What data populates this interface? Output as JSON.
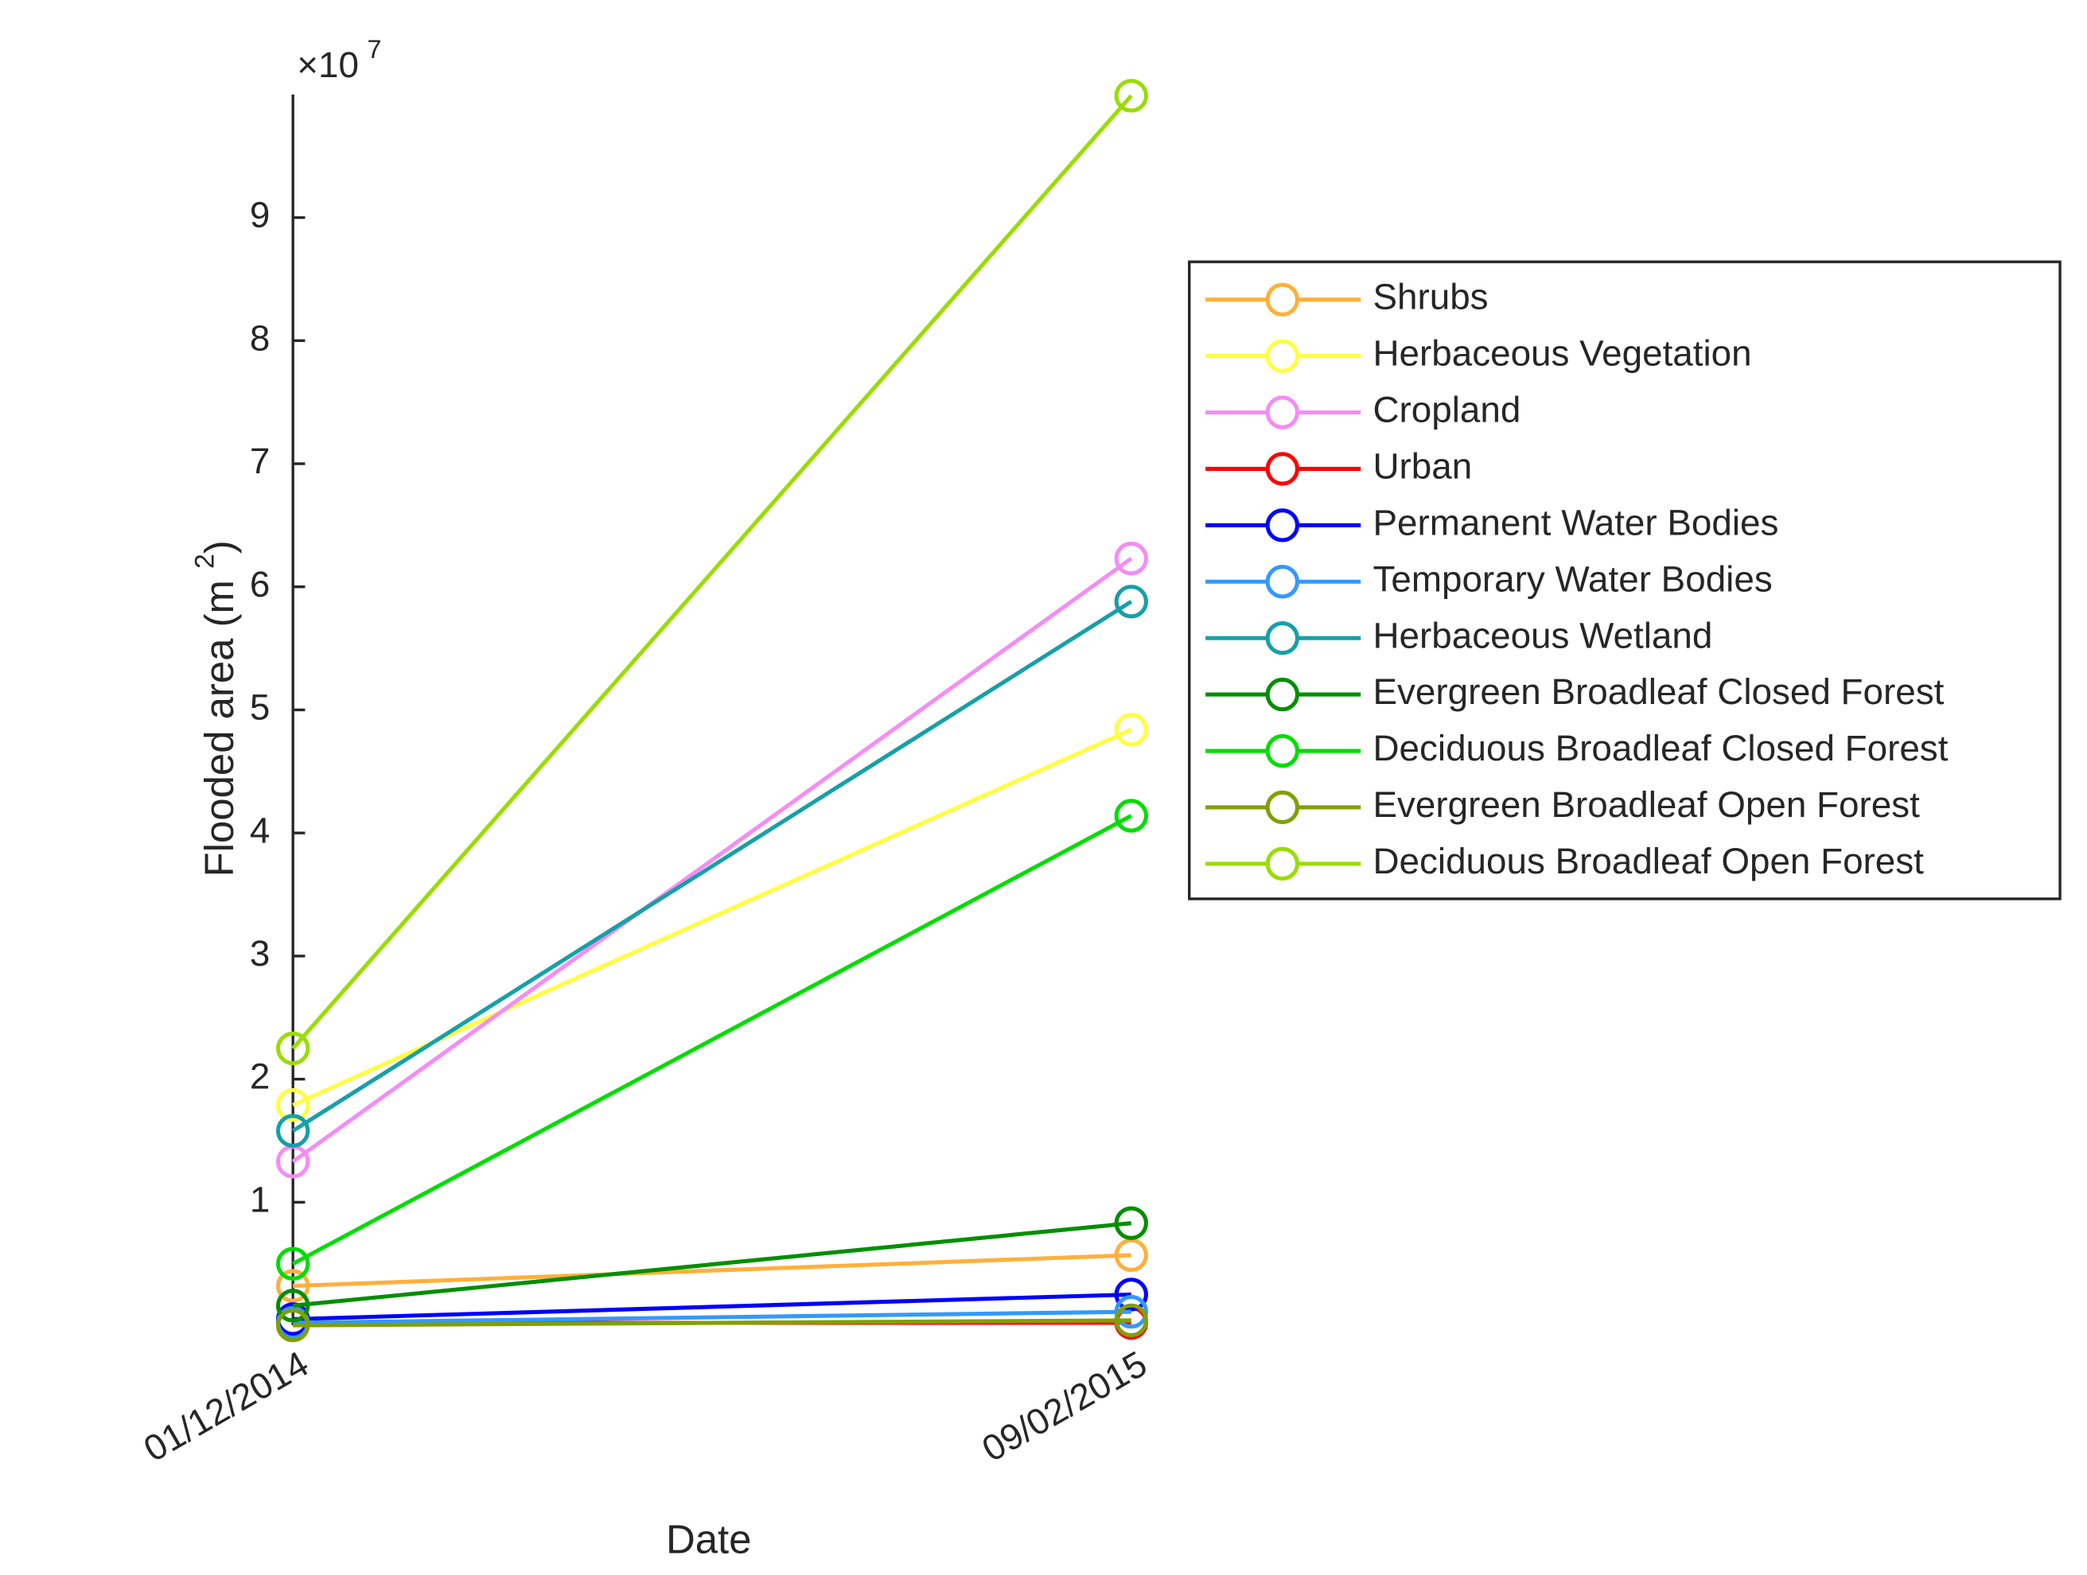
{
  "chart_data": {
    "type": "line",
    "xlabel": "Date",
    "ylabel": "Flooded area (m ",
    "ylabel_sup": "2",
    "ylabel_end": ")",
    "y_multiplier": "×10",
    "y_exponent": "7",
    "categories": [
      "01/12/2014",
      "09/02/2015"
    ],
    "ylim": [
      0,
      10
    ],
    "yticks": [
      1,
      2,
      3,
      4,
      5,
      6,
      7,
      8,
      9
    ],
    "series": [
      {
        "name": "Shrubs",
        "color": "#ffb03a",
        "values": [
          0.32,
          0.57
        ]
      },
      {
        "name": "Herbaceous Vegetation",
        "color": "#ffff40",
        "values": [
          1.79,
          4.84
        ]
      },
      {
        "name": "Cropland",
        "color": "#f58cf5",
        "values": [
          1.33,
          6.23
        ]
      },
      {
        "name": "Urban",
        "color": "#ff0000",
        "values": [
          0.02,
          0.02
        ]
      },
      {
        "name": "Permanent Water Bodies",
        "color": "#0000ff",
        "values": [
          0.05,
          0.25
        ]
      },
      {
        "name": "Temporary Water Bodies",
        "color": "#3399ff",
        "values": [
          0.02,
          0.11
        ]
      },
      {
        "name": "Herbaceous Wetland",
        "color": "#16a0a8",
        "values": [
          1.58,
          5.88
        ]
      },
      {
        "name": "Evergreen Broadleaf Closed Forest",
        "color": "#008f00",
        "values": [
          0.16,
          0.83
        ]
      },
      {
        "name": "Deciduous Broadleaf Closed Forest",
        "color": "#00dd00",
        "values": [
          0.5,
          4.14
        ]
      },
      {
        "name": "Evergreen Broadleaf Open Forest",
        "color": "#80a000",
        "values": [
          0.0,
          0.04
        ]
      },
      {
        "name": "Deciduous Broadleaf Open Forest",
        "color": "#99dd00",
        "values": [
          2.25,
          9.99
        ]
      }
    ]
  }
}
